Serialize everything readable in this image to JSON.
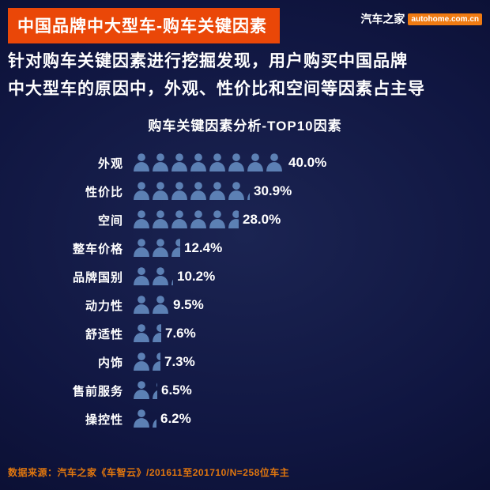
{
  "header": {
    "banner_title": "中国品牌中大型车-购车关键因素",
    "logo_cn": "汽车之家",
    "logo_domain": "autohome.com.cn"
  },
  "intro": {
    "line1": "针对购车关键因素进行挖掘发现，用户购买中国品牌",
    "line2": "中大型车的原因中，外观、性价比和空间等因素占主导"
  },
  "chart_data": {
    "type": "bar",
    "subtype": "pictogram-horizontal",
    "title": "购车关键因素分析-TOP10因素",
    "categories": [
      "外观",
      "性价比",
      "空间",
      "整车价格",
      "品牌国别",
      "动力性",
      "舒适性",
      "内饰",
      "售前服务",
      "操控性"
    ],
    "values": [
      40.0,
      30.9,
      28.0,
      12.4,
      10.2,
      9.5,
      7.6,
      7.3,
      6.5,
      6.2
    ],
    "value_labels": [
      "40.0%",
      "30.9%",
      "28.0%",
      "12.4%",
      "10.2%",
      "9.5%",
      "7.6%",
      "7.3%",
      "6.5%",
      "6.2%"
    ],
    "icon": "person-silhouette",
    "percent_per_icon": 5,
    "xlim": [
      0,
      45
    ],
    "unit": "%"
  },
  "footer": {
    "source": "数据来源：汽车之家《车智云》/201611至201710/N=258位车主"
  },
  "colors": {
    "accent_orange": "#ea4708",
    "logo_orange": "#f07b12",
    "source_orange": "#e0760e",
    "icon_blue": "#5c80b4",
    "background_dark": "#0a0e30",
    "text_white": "#ffffff"
  }
}
